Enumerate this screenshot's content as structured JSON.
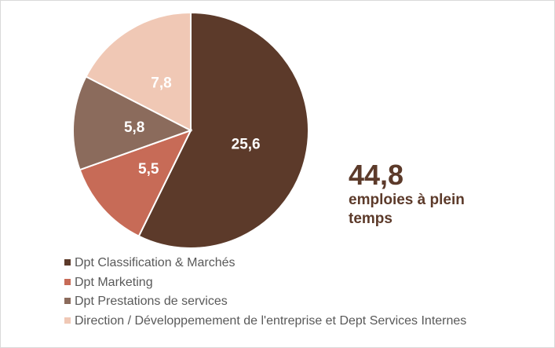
{
  "chart_data": {
    "type": "pie",
    "categories": [
      "Dpt Classification & Marchés",
      "Dpt Marketing",
      "Dpt Prestations de services",
      "Direction / Développemement de l'entreprise et Dept Services Internes"
    ],
    "values": [
      25.6,
      5.5,
      5.8,
      7.8
    ],
    "value_labels": [
      "25,6",
      "5,5",
      "5,8",
      "7,8"
    ],
    "colors": [
      "#5c3a2a",
      "#c76b57",
      "#8b6b5c",
      "#f0c8b5"
    ],
    "start_angle": "top, clockwise",
    "legend_placement": "bottom-left"
  },
  "summary": {
    "total": "44,8",
    "unit": "emploies à plein temps"
  }
}
